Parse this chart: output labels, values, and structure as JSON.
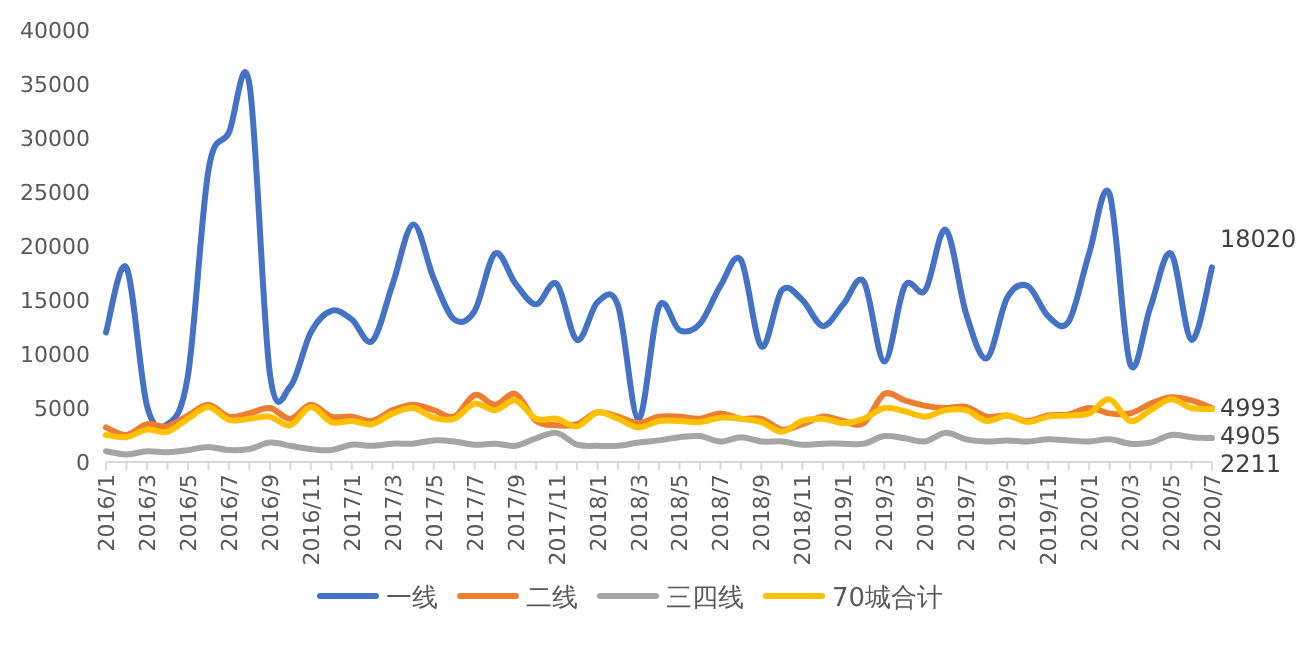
{
  "chart_data": {
    "type": "line",
    "categories": [
      "2016/1",
      null,
      "2016/3",
      null,
      "2016/5",
      null,
      "2016/7",
      null,
      "2016/9",
      null,
      "2016/11",
      null,
      "2017/1",
      null,
      "2017/3",
      null,
      "2017/5",
      null,
      "2017/7",
      null,
      "2017/9",
      null,
      "2017/11",
      null,
      "2018/1",
      null,
      "2018/3",
      null,
      "2018/5",
      null,
      "2018/7",
      null,
      "2018/9",
      null,
      "2018/11",
      null,
      "2019/1",
      null,
      "2019/3",
      null,
      "2019/5",
      null,
      "2019/7",
      null,
      "2019/9",
      null,
      "2019/11",
      null,
      "2020/1",
      null,
      "2020/3",
      null,
      "2020/5",
      null,
      "2020/7"
    ],
    "series": [
      {
        "name": "一线",
        "color": "#4472c4",
        "values": [
          12000,
          18000,
          5200,
          3500,
          8000,
          27000,
          30500,
          35000,
          8200,
          7000,
          12000,
          14000,
          13200,
          11200,
          16500,
          22000,
          17000,
          13200,
          14000,
          19300,
          16500,
          14600,
          16500,
          11300,
          14800,
          14500,
          4000,
          14400,
          12200,
          12800,
          16300,
          18700,
          10700,
          15900,
          15000,
          12600,
          14600,
          16700,
          9300,
          16300,
          15900,
          21500,
          13700,
          9600,
          15200,
          16300,
          13500,
          13000,
          19300,
          24800,
          9100,
          14400,
          19300,
          11300,
          18020
        ],
        "value_labels": [
          null,
          null,
          null,
          null,
          null,
          null,
          null,
          null,
          null,
          null,
          null,
          null,
          null,
          null,
          null,
          null,
          null,
          null,
          null,
          null,
          null,
          null,
          null,
          null,
          null,
          null,
          null,
          null,
          null,
          null,
          null,
          null,
          null,
          null,
          null,
          null,
          null,
          null,
          null,
          null,
          null,
          null,
          null,
          null,
          null,
          null,
          null,
          null,
          null,
          null,
          null,
          null,
          null,
          null,
          "18020"
        ]
      },
      {
        "name": "二线",
        "color": "#ed7d31",
        "values": [
          3200,
          2500,
          3500,
          3300,
          4300,
          5300,
          4200,
          4500,
          5000,
          4000,
          5300,
          4200,
          4200,
          3800,
          4800,
          5300,
          4800,
          4200,
          6200,
          5300,
          6300,
          3800,
          3400,
          3500,
          4600,
          4200,
          3600,
          4200,
          4200,
          4000,
          4500,
          4000,
          4000,
          3000,
          3500,
          4200,
          3800,
          3600,
          6300,
          5700,
          5200,
          5000,
          5100,
          4200,
          4300,
          3800,
          4300,
          4400,
          5000,
          4500,
          4500,
          5400,
          6000,
          5700,
          4993
        ],
        "value_labels": [
          null,
          null,
          null,
          null,
          null,
          null,
          null,
          null,
          null,
          null,
          null,
          null,
          null,
          null,
          null,
          null,
          null,
          null,
          null,
          null,
          null,
          null,
          null,
          null,
          null,
          null,
          null,
          null,
          null,
          null,
          null,
          null,
          null,
          null,
          null,
          null,
          null,
          null,
          null,
          null,
          null,
          null,
          null,
          null,
          null,
          null,
          null,
          null,
          null,
          null,
          null,
          null,
          null,
          null,
          "4993"
        ]
      },
      {
        "name": "三四线",
        "color": "#a5a5a5",
        "values": [
          1000,
          700,
          1000,
          900,
          1100,
          1400,
          1100,
          1200,
          1800,
          1500,
          1200,
          1100,
          1600,
          1500,
          1700,
          1700,
          2000,
          1900,
          1600,
          1700,
          1500,
          2200,
          2700,
          1600,
          1500,
          1500,
          1800,
          2000,
          2300,
          2400,
          1900,
          2300,
          1900,
          1900,
          1600,
          1700,
          1700,
          1700,
          2400,
          2200,
          1900,
          2700,
          2100,
          1900,
          2000,
          1900,
          2100,
          2000,
          1900,
          2100,
          1700,
          1800,
          2500,
          2300,
          2211
        ],
        "value_labels": [
          null,
          null,
          null,
          null,
          null,
          null,
          null,
          null,
          null,
          null,
          null,
          null,
          null,
          null,
          null,
          null,
          null,
          null,
          null,
          null,
          null,
          null,
          null,
          null,
          null,
          null,
          null,
          null,
          null,
          null,
          null,
          null,
          null,
          null,
          null,
          null,
          null,
          null,
          null,
          null,
          null,
          null,
          null,
          null,
          null,
          null,
          null,
          null,
          null,
          null,
          null,
          null,
          null,
          null,
          "2211"
        ]
      },
      {
        "name": "70城合计",
        "color": "#ffc000",
        "values": [
          2500,
          2300,
          3000,
          2800,
          4000,
          5100,
          3900,
          4000,
          4200,
          3400,
          5100,
          3700,
          3800,
          3500,
          4500,
          5000,
          4100,
          4000,
          5400,
          4800,
          5700,
          4000,
          4000,
          3300,
          4600,
          4000,
          3200,
          3800,
          3800,
          3700,
          4100,
          4000,
          3700,
          2800,
          3800,
          4000,
          3600,
          4000,
          5000,
          4700,
          4200,
          4800,
          4800,
          3800,
          4300,
          3700,
          4200,
          4300,
          4500,
          5800,
          3800,
          4800,
          5800,
          5000,
          4905
        ],
        "value_labels": [
          null,
          null,
          null,
          null,
          null,
          null,
          null,
          null,
          null,
          null,
          null,
          null,
          null,
          null,
          null,
          null,
          null,
          null,
          null,
          null,
          null,
          null,
          null,
          null,
          null,
          null,
          null,
          null,
          null,
          null,
          null,
          null,
          null,
          null,
          null,
          null,
          null,
          null,
          null,
          null,
          null,
          null,
          null,
          null,
          null,
          null,
          null,
          null,
          null,
          null,
          null,
          null,
          null,
          null,
          "4905"
        ]
      }
    ],
    "ylim": [
      0,
      40000
    ],
    "yticks": [
      0,
      5000,
      10000,
      15000,
      20000,
      25000,
      30000,
      35000,
      40000
    ],
    "legend": "bottom",
    "grid": false
  }
}
